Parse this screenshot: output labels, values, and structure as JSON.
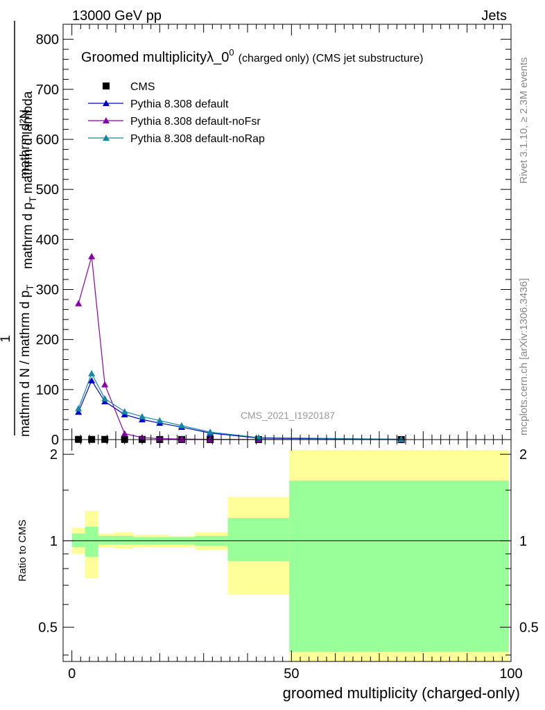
{
  "header": {
    "energy_label": "13000 GeV pp",
    "process_label": "Jets"
  },
  "side_labels": {
    "rivet": "Rivet 3.1.10, ≥ 2.3M events",
    "mcplots": "mcplots.cern.ch [arXiv:1306.3436]"
  },
  "watermark": "CMS_2021_I1920187",
  "colors": {
    "data": "#000000",
    "default": "#0000cc",
    "noFsr": "#8800aa",
    "noRap": "#1188aa",
    "band_outer": "#ffff99",
    "band_inner": "#99ff99"
  },
  "chart_data": [
    {
      "type": "line",
      "title": "Groomed multiplicityλ_0",
      "title_superscript": "0",
      "title_suffix": "(charged only) (CMS jet substructure)",
      "ylabel": {
        "numerator": "mathrm d²N",
        "denominator_part1": "mathrm d p",
        "denominator_sub1": "T",
        "denominator_part2": "mathrm d lambda",
        "prefactor_numerator": "1",
        "prefactor_denominator_part1": "mathrm d N / mathrm d p",
        "prefactor_denominator_sub": "T"
      },
      "xlim": [
        -2,
        100
      ],
      "ylim": [
        0,
        830
      ],
      "yticks": [
        0,
        100,
        200,
        300,
        400,
        500,
        600,
        700,
        800
      ],
      "legend_position": "top-left",
      "series": [
        {
          "name": "CMS",
          "marker": "square",
          "x": [
            1.5,
            4.5,
            7.5,
            12,
            16,
            20,
            25,
            31.5,
            42.5,
            75
          ],
          "y": [
            0.4,
            0.4,
            0.4,
            0.3,
            0.3,
            0.2,
            0.2,
            0.1,
            0.05,
            0.02
          ]
        },
        {
          "name": "Pythia 8.308 default",
          "marker": "triangle",
          "x": [
            1.5,
            4.5,
            7.5,
            12,
            16,
            20,
            25,
            31.5,
            42.5,
            75
          ],
          "y": [
            55,
            118,
            76,
            50,
            40,
            33,
            25,
            13,
            3,
            0.5
          ]
        },
        {
          "name": "Pythia 8.308 default-noFsr",
          "marker": "triangle",
          "x": [
            1.5,
            4.5,
            7.5,
            12,
            16,
            20,
            25,
            31.5,
            42.5,
            75
          ],
          "y": [
            272,
            366,
            110,
            12,
            4,
            2,
            1,
            0.5,
            0.2,
            0.05
          ]
        },
        {
          "name": "Pythia 8.308 default-noRap",
          "marker": "triangle",
          "x": [
            1.5,
            4.5,
            7.5,
            12,
            16,
            20,
            25,
            31.5,
            42.5,
            75
          ],
          "y": [
            62,
            132,
            82,
            56,
            46,
            38,
            28,
            15,
            4,
            0.7
          ]
        }
      ]
    },
    {
      "type": "area",
      "ylabel": "Ratio to CMS",
      "xlabel": "groomed multiplicity (charged-only)",
      "xlim": [
        -2,
        100
      ],
      "ylim": [
        0.38,
        2.25
      ],
      "yticks": [
        0.5,
        1,
        2
      ],
      "xticks": [
        0,
        50,
        100
      ],
      "reference_line": 1,
      "bins": [
        {
          "x0": 0,
          "x1": 3,
          "inner": [
            0.95,
            1.06
          ],
          "outer": [
            0.9,
            1.11
          ]
        },
        {
          "x0": 3,
          "x1": 6,
          "inner": [
            0.88,
            1.12
          ],
          "outer": [
            0.74,
            1.27
          ]
        },
        {
          "x0": 6,
          "x1": 9.5,
          "inner": [
            0.97,
            1.04
          ],
          "outer": [
            0.95,
            1.06
          ]
        },
        {
          "x0": 9.5,
          "x1": 14,
          "inner": [
            0.97,
            1.04
          ],
          "outer": [
            0.94,
            1.07
          ]
        },
        {
          "x0": 14,
          "x1": 18,
          "inner": [
            0.97,
            1.03
          ],
          "outer": [
            0.95,
            1.05
          ]
        },
        {
          "x0": 18,
          "x1": 22,
          "inner": [
            0.97,
            1.03
          ],
          "outer": [
            0.95,
            1.05
          ]
        },
        {
          "x0": 22,
          "x1": 28,
          "inner": [
            0.97,
            1.03
          ],
          "outer": [
            0.95,
            1.04
          ]
        },
        {
          "x0": 28,
          "x1": 35.5,
          "inner": [
            0.96,
            1.04
          ],
          "outer": [
            0.93,
            1.07
          ]
        },
        {
          "x0": 35.5,
          "x1": 49.5,
          "inner": [
            0.85,
            1.2
          ],
          "outer": [
            0.65,
            1.42
          ]
        },
        {
          "x0": 49.5,
          "x1": 99.5,
          "inner": [
            0.41,
            1.62
          ],
          "outer": [
            0.38,
            2.07
          ]
        }
      ]
    }
  ]
}
